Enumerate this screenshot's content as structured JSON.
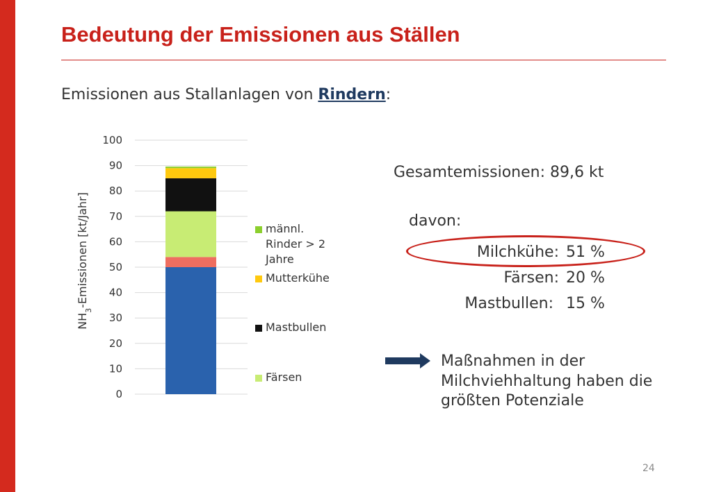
{
  "slide": {
    "title": "Bedeutung der Emissionen aus Ställen",
    "subtitle_prefix": "Emissionen aus Stallanlagen von ",
    "subtitle_highlight": "Rindern",
    "subtitle_suffix": ":",
    "total_label": "Gesamtemissionen: 89,6 kt",
    "davon_label": "davon:",
    "shares": [
      {
        "label": "Milchkühe:",
        "value": "51 %"
      },
      {
        "label": "Färsen:",
        "value": "20 %"
      },
      {
        "label": "Mastbullen:",
        "value": "15 %"
      }
    ],
    "conclusion_lines": [
      "Maßnahmen in der",
      "Milchviehhaltung haben die",
      "größten Potenziale"
    ],
    "page_number": "24",
    "colors": {
      "accent_red": "#c8211a",
      "arrow": "#1f3a5f"
    }
  },
  "chart_data": {
    "type": "bar",
    "stacked": true,
    "categories": [
      ""
    ],
    "ylabel": "NH3-Emissionen [kt/Jahr]",
    "ylim": [
      0,
      100
    ],
    "yticks": [
      0,
      10,
      20,
      30,
      40,
      50,
      60,
      70,
      80,
      90,
      100
    ],
    "grid": true,
    "series": [
      {
        "name": "",
        "values": [
          50
        ],
        "color": "#2a62ad"
      },
      {
        "name": "",
        "values": [
          4
        ],
        "color": "#ee6e60"
      },
      {
        "name": "Färsen",
        "values": [
          18
        ],
        "color": "#c8ec74"
      },
      {
        "name": "Mastbullen",
        "values": [
          13
        ],
        "color": "#111111"
      },
      {
        "name": "Mutterkühe",
        "values": [
          4
        ],
        "color": "#ffc90e"
      },
      {
        "name": "männl. Rinder > 2 Jahre",
        "values": [
          0.6
        ],
        "color": "#8ccf2e"
      }
    ],
    "legend": [
      {
        "label_lines": [
          "männl.",
          "Rinder > 2",
          "Jahre"
        ],
        "color": "#8ccf2e"
      },
      {
        "label_lines": [
          "Mutterkühe"
        ],
        "color": "#ffc90e"
      },
      {
        "label_lines": [
          "Mastbullen"
        ],
        "color": "#111111"
      },
      {
        "label_lines": [
          "Färsen"
        ],
        "color": "#c8ec74"
      }
    ],
    "legend_position": "right"
  }
}
